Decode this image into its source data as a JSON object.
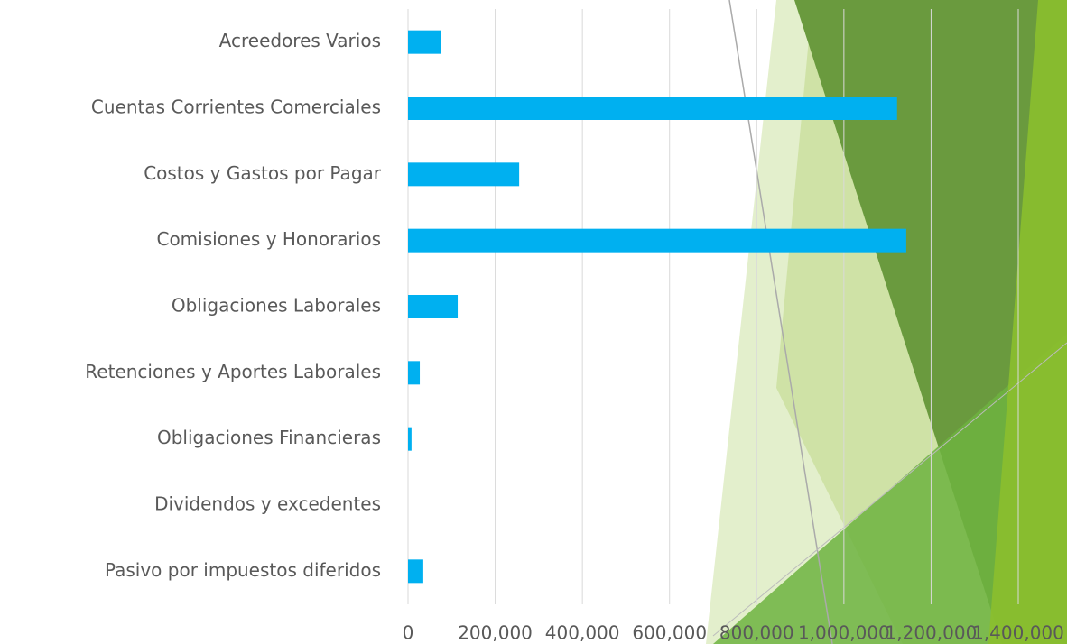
{
  "chart_data": {
    "type": "hbar",
    "categories": [
      "Acreedores Varios",
      "Cuentas Corrientes Comerciales",
      "Costos y Gastos por Pagar",
      "Comisiones y Honorarios",
      "Obligaciones Laborales",
      "Retenciones y Aportes Laborales",
      "Obligaciones Financieras",
      "Dividendos y excedentes",
      "Pasivo por impuestos diferidos"
    ],
    "values": [
      75000,
      1122000,
      255000,
      1143000,
      114000,
      27000,
      8000,
      0,
      35000
    ],
    "color": "#00b0f0",
    "xlim": [
      0,
      1400000
    ],
    "xticks": [
      0,
      {
        "value": 200000,
        "label": "200,000"
      },
      {
        "value": 400000,
        "label": "400,000"
      },
      {
        "value": 600000,
        "label": "600,000"
      },
      {
        "value": 800000,
        "label": "800,000"
      },
      {
        "value": 1000000,
        "label": "1,000,000"
      },
      {
        "value": 1200000,
        "label": "1,200,000"
      },
      {
        "value": 1400000,
        "label": "1,400,000"
      }
    ],
    "grid": true
  }
}
